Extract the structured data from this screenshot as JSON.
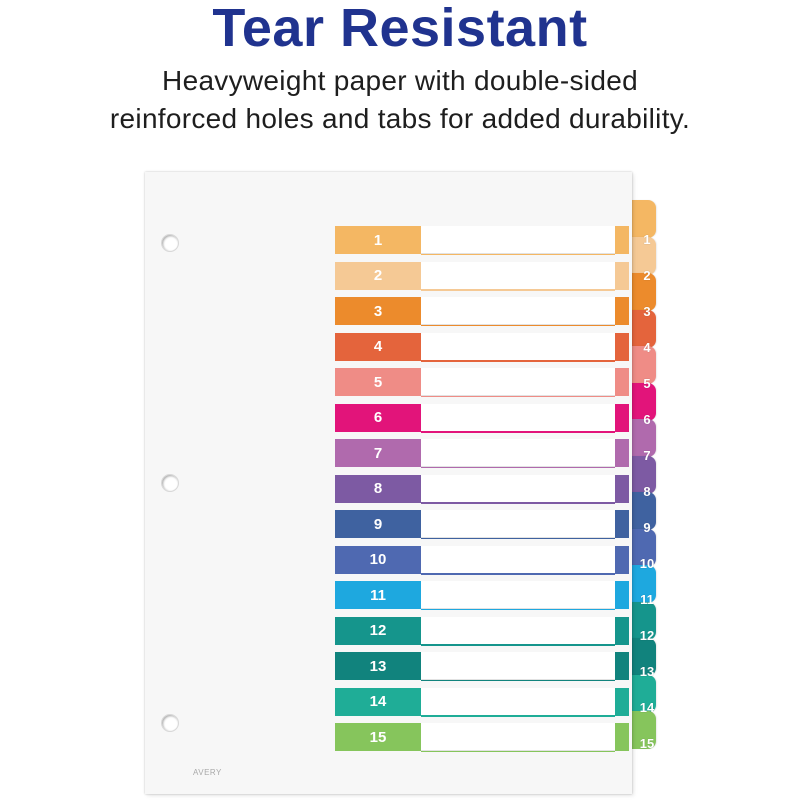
{
  "heading": {
    "title": "Tear Resistant",
    "line1": "Heavyweight paper with double-sided",
    "line2": "reinforced holes and tabs for added durability."
  },
  "sheet": {
    "brand": "AVERY"
  },
  "dividers": [
    {
      "number": "1",
      "color": "#f4b763"
    },
    {
      "number": "2",
      "color": "#f5c995"
    },
    {
      "number": "3",
      "color": "#ec8b2c"
    },
    {
      "number": "4",
      "color": "#e4643c"
    },
    {
      "number": "5",
      "color": "#ef8c86"
    },
    {
      "number": "6",
      "color": "#e2147a"
    },
    {
      "number": "7",
      "color": "#b06aad"
    },
    {
      "number": "8",
      "color": "#7d5aa3"
    },
    {
      "number": "9",
      "color": "#3f62a0"
    },
    {
      "number": "10",
      "color": "#4f69b1"
    },
    {
      "number": "11",
      "color": "#1ea8df"
    },
    {
      "number": "12",
      "color": "#15958c"
    },
    {
      "number": "13",
      "color": "#11837d"
    },
    {
      "number": "14",
      "color": "#1fad97"
    },
    {
      "number": "15",
      "color": "#86c55c"
    }
  ]
}
